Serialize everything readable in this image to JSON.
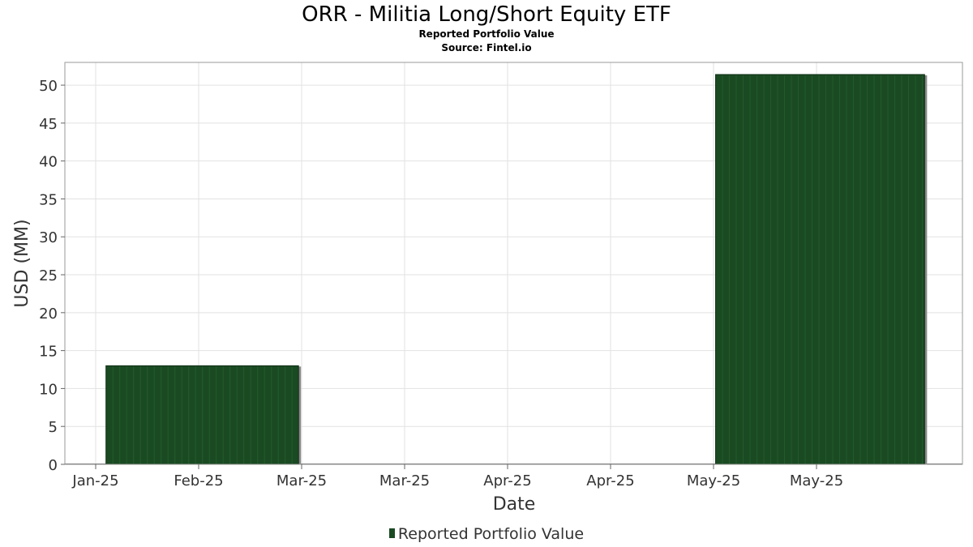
{
  "chart_data": {
    "type": "bar",
    "title": "ORR - Militia Long/Short Equity ETF",
    "subtitle": "Reported Portfolio Value",
    "source": "Source: Fintel.io",
    "xlabel": "Date",
    "ylabel": "USD (MM)",
    "ylim": [
      0,
      53
    ],
    "yticks": [
      0,
      5,
      10,
      15,
      20,
      25,
      30,
      35,
      40,
      45,
      50
    ],
    "xticks": [
      "Jan-25",
      "Feb-25",
      "Mar-25",
      "Mar-25",
      "Apr-25",
      "Apr-25",
      "May-25",
      "May-25"
    ],
    "grid": true,
    "legend_position": "bottom",
    "series": [
      {
        "name": "Reported Portfolio Value",
        "color": "#1a4a22",
        "bars": [
          {
            "start_tick": 0.1,
            "end_tick": 1.97,
            "value": 13.0
          },
          {
            "start_tick": 6.02,
            "end_tick": 8.05,
            "value": 51.4
          }
        ]
      }
    ]
  }
}
